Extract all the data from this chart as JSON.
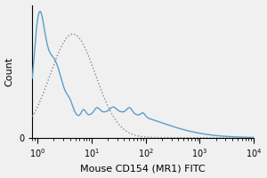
{
  "title": "",
  "xlabel": "Mouse CD154 (MR1) FITC",
  "ylabel": "Count",
  "xlim": [
    0.8,
    10000
  ],
  "ylim": [
    0,
    1.05
  ],
  "background_color": "#f0f0f0",
  "plot_bg_color": "#f0f0f0",
  "isotype_color": "#888888",
  "antibody_color": "#5b9ec9",
  "xlabel_fontsize": 8,
  "ylabel_fontsize": 8,
  "tick_fontsize": 7
}
